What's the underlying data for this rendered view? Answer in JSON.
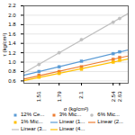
{
  "chart_data": {
    "type": "scatter",
    "xlabel": "σ (kg/cm²)",
    "ylabel": "τ (kg/cm²)",
    "xlim": [
      1.3,
      2.75
    ],
    "xticks": [
      1.51,
      1.79,
      2.1,
      2.54,
      2.63
    ],
    "ylim": [
      0.55,
      2.2
    ],
    "yticks": [
      0.6,
      0.8,
      {
        "value": 1.0,
        "label": "1.0"
      },
      1.2,
      1.4,
      1.6,
      1.8,
      {
        "value": 2.0,
        "label": "2.0"
      },
      2.2
    ],
    "grid": "y",
    "legend": "bottom",
    "series": [
      {
        "name": "12% Ce...",
        "type": "scatter",
        "color": "#5B9BD5",
        "marker": "square",
        "x": [
          1.51,
          1.79,
          2.1,
          2.54,
          2.63
        ],
        "values": [
          0.8,
          0.9,
          1.02,
          1.18,
          1.22
        ]
      },
      {
        "name": "3% Mic...",
        "type": "scatter",
        "color": "#ED7D31",
        "marker": "square",
        "x": [
          1.51,
          1.79,
          2.1,
          2.54,
          2.63
        ],
        "values": [
          0.72,
          0.8,
          0.9,
          1.06,
          1.1
        ]
      },
      {
        "name": "6% Mic...",
        "type": "scatter",
        "color": "#C0C0C0",
        "marker": "circle",
        "x": [
          1.51,
          1.79,
          2.1,
          2.54,
          2.63
        ],
        "values": [
          0.95,
          1.2,
          1.48,
          1.85,
          1.93
        ]
      },
      {
        "name": "1% Mic...",
        "type": "scatter",
        "color": "#FFC000",
        "marker": "square",
        "x": [
          1.51,
          1.79,
          2.1,
          2.54,
          2.63
        ],
        "values": [
          0.68,
          0.76,
          0.85,
          1.0,
          1.04
        ]
      },
      {
        "name": "Linear (1...",
        "type": "line",
        "color": "#5B9BD5",
        "line_style": "solid",
        "x": [
          1.3,
          2.75
        ],
        "values": [
          0.7197,
          1.2618
        ]
      },
      {
        "name": "Linear (2...",
        "type": "line",
        "color": "#ED7D31",
        "line_style": "solid",
        "x": [
          1.3,
          2.75
        ],
        "values": [
          0.6388,
          1.1326
        ]
      },
      {
        "name": "Linear (3...",
        "type": "line",
        "color": "#C0C0C0",
        "line_style": "solid",
        "x": [
          1.3,
          2.75
        ],
        "values": [
          0.7718,
          2.0369
        ]
      },
      {
        "name": "Linear (4...",
        "type": "line",
        "color": "#FFC000",
        "line_style": "solid",
        "x": [
          1.3,
          2.75
        ],
        "values": [
          0.6054,
          1.0696
        ]
      }
    ]
  }
}
